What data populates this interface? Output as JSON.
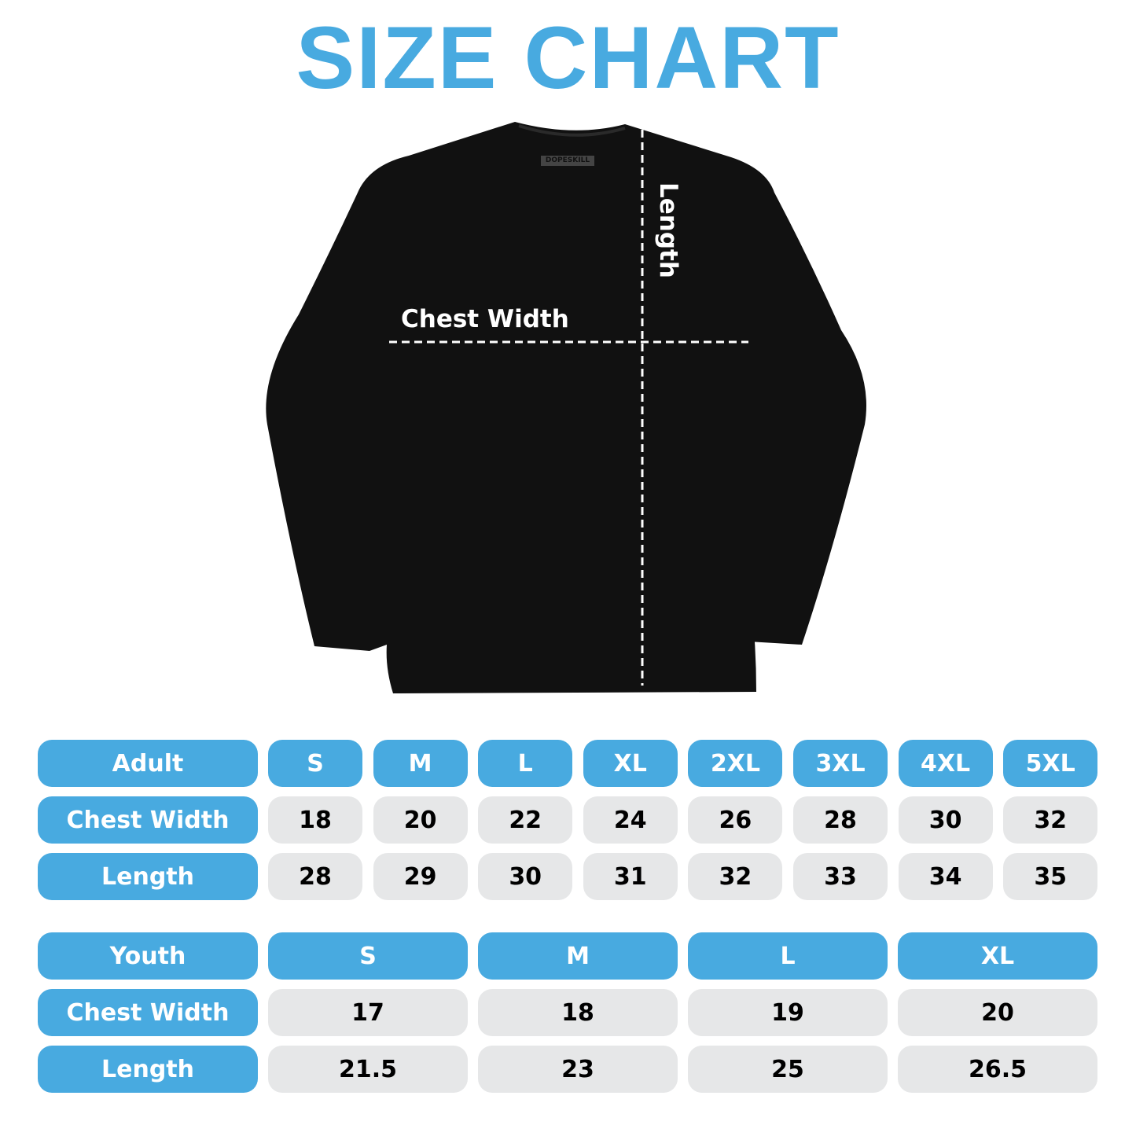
{
  "title": "SIZE CHART",
  "colors": {
    "accent": "#48aae0",
    "cell_gray": "#e6e7e8",
    "shirt": "#111111"
  },
  "shirt": {
    "brand_tag": "DOPESKILL",
    "chest_label": "Chest Width",
    "length_label": "Length"
  },
  "adult": {
    "header": "Adult",
    "sizes": [
      "S",
      "M",
      "L",
      "XL",
      "2XL",
      "3XL",
      "4XL",
      "5XL"
    ],
    "rows": [
      {
        "label": "Chest Width",
        "values": [
          "18",
          "20",
          "22",
          "24",
          "26",
          "28",
          "30",
          "32"
        ]
      },
      {
        "label": "Length",
        "values": [
          "28",
          "29",
          "30",
          "31",
          "32",
          "33",
          "34",
          "35"
        ]
      }
    ]
  },
  "youth": {
    "header": "Youth",
    "sizes": [
      "S",
      "M",
      "L",
      "XL"
    ],
    "rows": [
      {
        "label": "Chest Width",
        "values": [
          "17",
          "18",
          "19",
          "20"
        ]
      },
      {
        "label": "Length",
        "values": [
          "21.5",
          "23",
          "25",
          "26.5"
        ]
      }
    ]
  }
}
